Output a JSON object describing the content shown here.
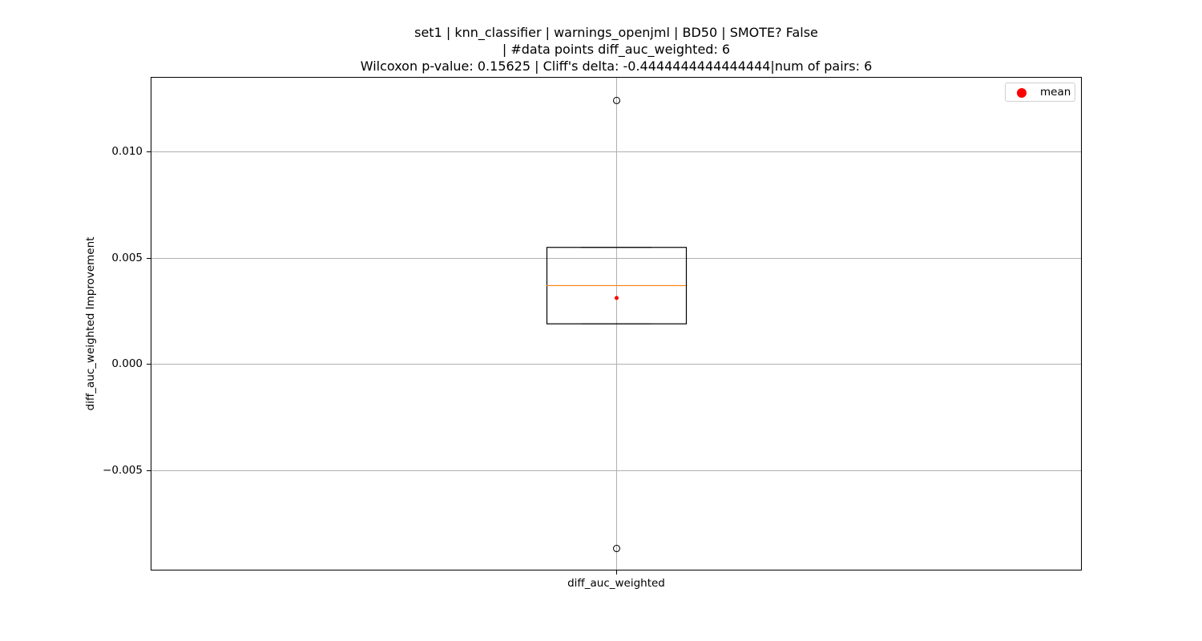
{
  "chart_data": {
    "type": "box",
    "title_lines": [
      "set1 | knn_classifier | warnings_openjml | BD50 | SMOTE? False",
      "| #data points diff_auc_weighted: 6",
      "Wilcoxon p-value: 0.15625 | Cliff's delta: -0.4444444444444444|num of pairs: 6"
    ],
    "xlabel": "",
    "ylabel": "diff_auc_weighted Improvement",
    "categories": [
      "diff_auc_weighted"
    ],
    "ylim": [
      -0.0097,
      0.0135
    ],
    "yticks": [
      -0.005,
      0.0,
      0.005,
      0.01
    ],
    "ytick_labels": [
      "−0.005",
      "0.000",
      "0.005",
      "0.010"
    ],
    "grid": true,
    "legend": {
      "placement": "top-right",
      "entries": [
        {
          "label": "mean",
          "color": "#ff0000"
        }
      ]
    },
    "boxes": [
      {
        "name": "diff_auc_weighted",
        "q1": 0.0019,
        "median": 0.0037,
        "q3": 0.0055,
        "whisker_low": 0.0019,
        "whisker_high": 0.0055,
        "mean": 0.0031,
        "outliers": [
          0.0124,
          -0.0087
        ]
      }
    ],
    "colors": {
      "median": "#ff7f0e",
      "mean": "#ff0000",
      "box": "#000000",
      "grid": "#b0b0b0"
    }
  }
}
